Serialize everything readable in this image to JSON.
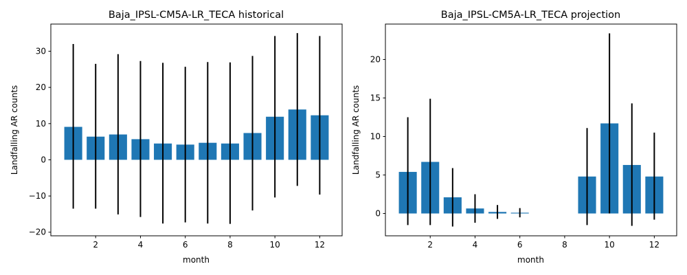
{
  "chart_data": [
    {
      "type": "bar",
      "title": "Baja_IPSL-CM5A-LR_TECA historical",
      "xlabel": "month",
      "ylabel": "Landfalling AR counts",
      "x": [
        1,
        2,
        3,
        4,
        5,
        6,
        7,
        8,
        9,
        10,
        11,
        12
      ],
      "values": [
        9.1,
        6.4,
        7.0,
        5.7,
        4.5,
        4.2,
        4.7,
        4.5,
        7.4,
        11.9,
        13.9,
        12.3
      ],
      "error_low": [
        -13.5,
        -13.5,
        -15.1,
        -15.8,
        -17.6,
        -17.3,
        -17.6,
        -17.7,
        -14.0,
        -10.4,
        -7.2,
        -9.6
      ],
      "error_high": [
        32.0,
        26.5,
        29.2,
        27.3,
        26.8,
        25.7,
        27.0,
        26.9,
        28.7,
        34.2,
        35.0,
        34.2
      ],
      "xlim": [
        0.0,
        13.0
      ],
      "ylim": [
        -21.0,
        37.5
      ],
      "xticks": [
        2,
        4,
        6,
        8,
        10,
        12
      ],
      "yticks": [
        -20,
        -10,
        0,
        10,
        20,
        30
      ],
      "bar_color": "#1f77b4",
      "errorbar_color": "#000000",
      "grid": false
    },
    {
      "type": "bar",
      "title": "Baja_IPSL-CM5A-LR_TECA projection",
      "xlabel": "month",
      "ylabel": "Landfalling AR counts",
      "x": [
        1,
        2,
        3,
        4,
        5,
        6,
        7,
        8,
        9,
        10,
        11,
        12
      ],
      "values": [
        5.4,
        6.7,
        2.1,
        0.65,
        0.2,
        0.1,
        0,
        0,
        4.8,
        11.7,
        6.3,
        4.8
      ],
      "error_low": [
        -1.5,
        -1.5,
        -1.7,
        -1.2,
        -0.7,
        -0.5,
        0,
        0,
        -1.5,
        0.0,
        -1.6,
        -0.8
      ],
      "error_high": [
        12.5,
        14.9,
        5.9,
        2.5,
        1.1,
        0.7,
        0,
        0,
        11.1,
        23.4,
        14.3,
        10.5
      ],
      "xlim": [
        0.0,
        13.0
      ],
      "ylim": [
        -2.9,
        24.6
      ],
      "xticks": [
        2,
        4,
        6,
        8,
        10,
        12
      ],
      "yticks": [
        0,
        5,
        10,
        15,
        20
      ],
      "bar_color": "#1f77b4",
      "errorbar_color": "#000000",
      "grid": false
    }
  ]
}
